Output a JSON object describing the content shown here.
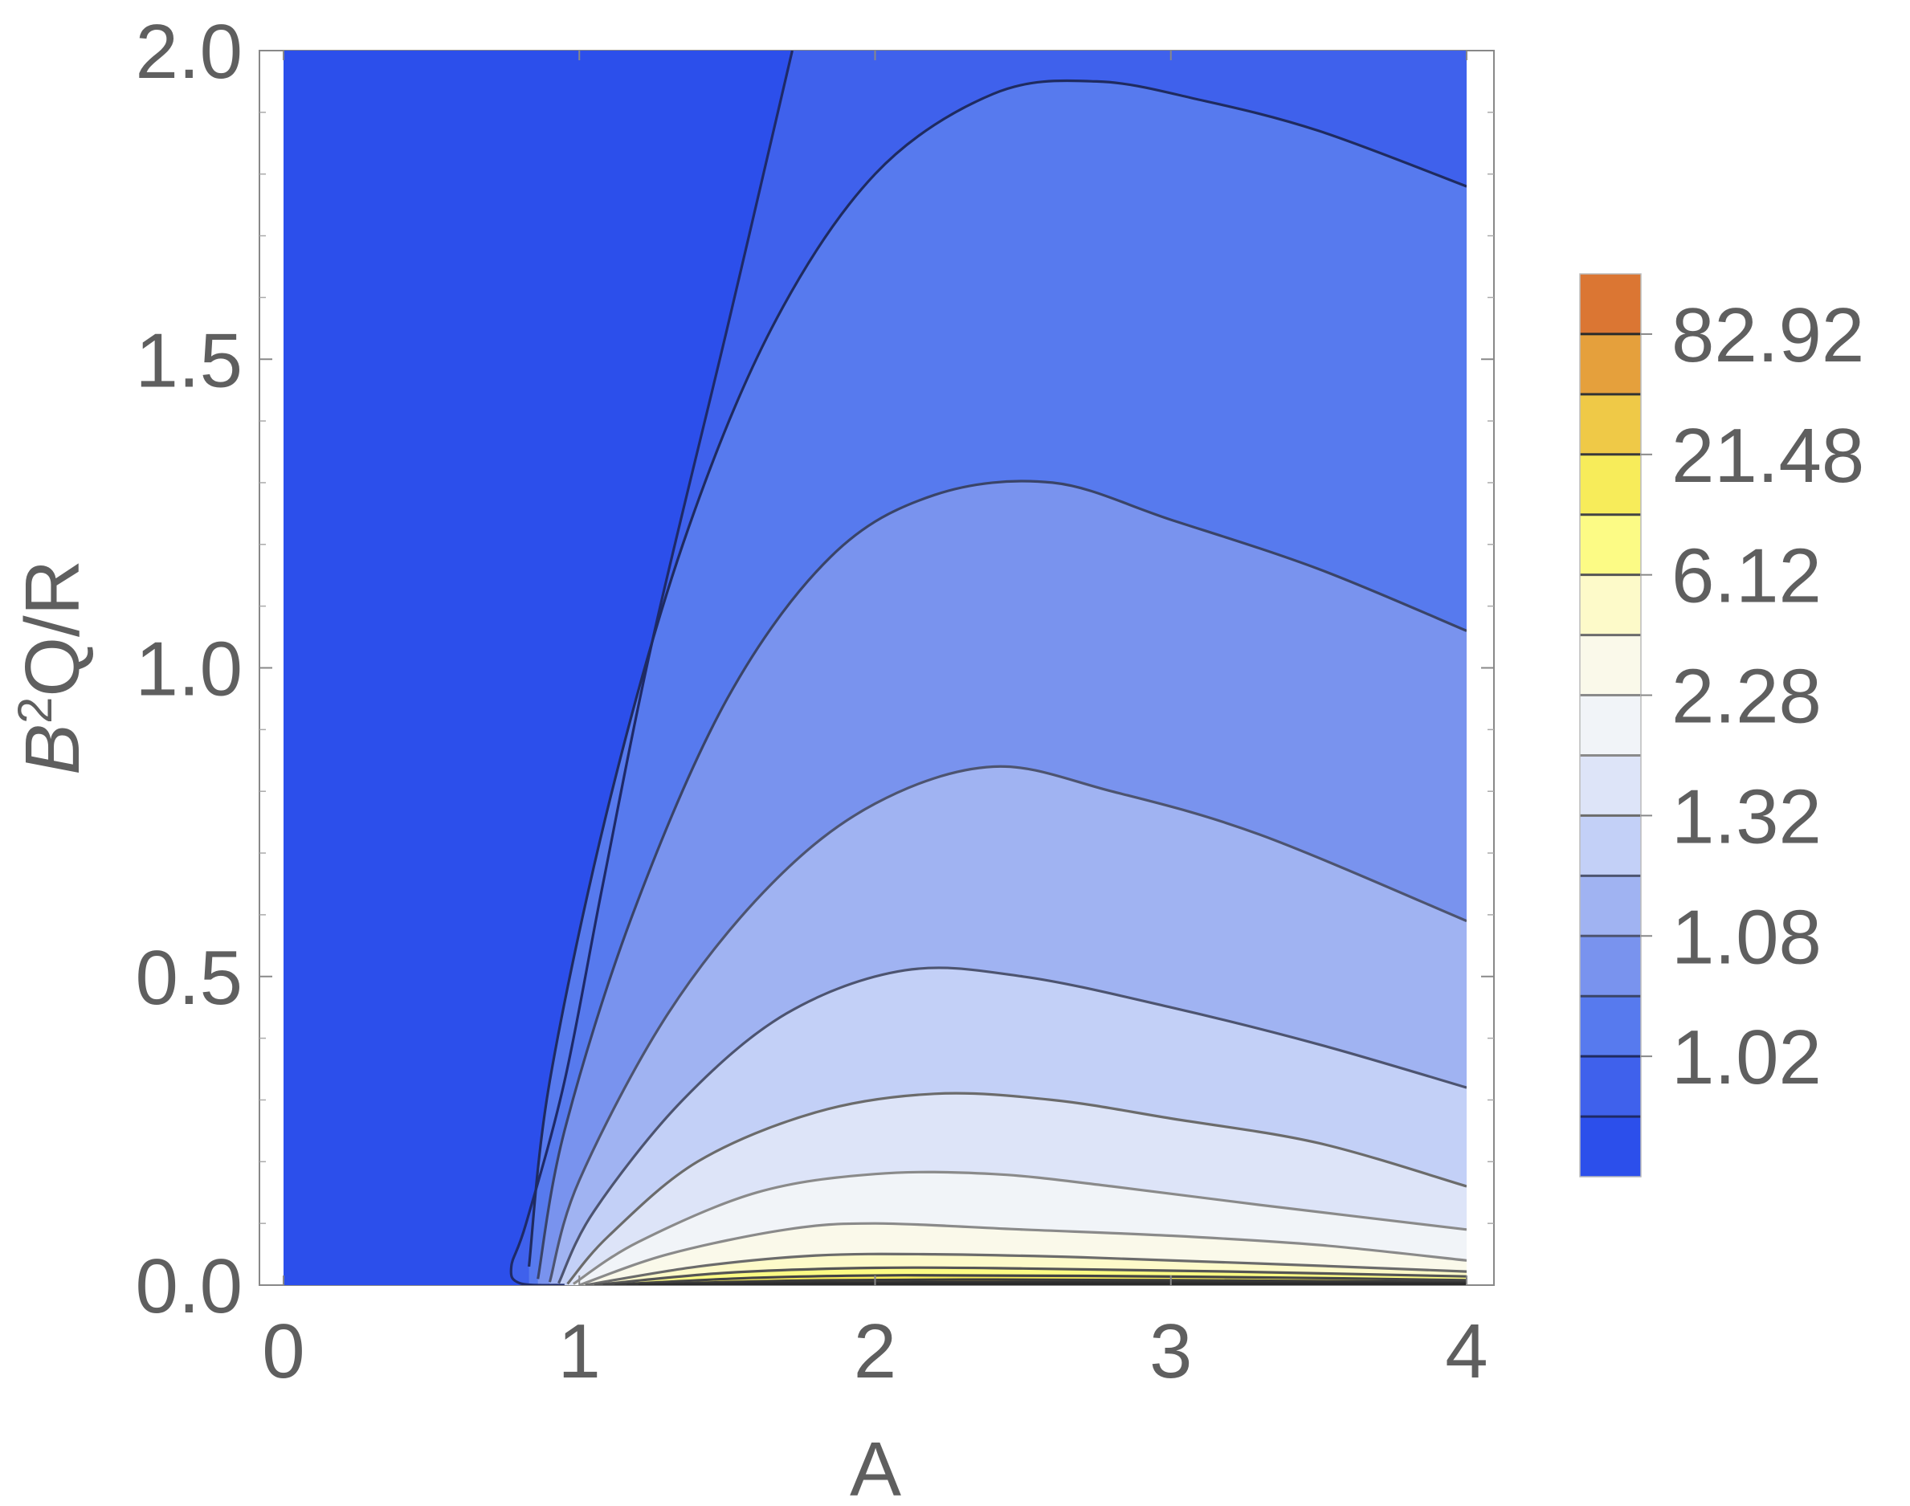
{
  "chart_data": {
    "type": "contour",
    "xlabel": "A",
    "ylabel": {
      "base": "B",
      "sup": "2",
      "rest": "Q/R"
    },
    "xlim": [
      0,
      4
    ],
    "ylim": [
      0,
      2
    ],
    "x_ticks": [
      "0",
      "1",
      "2",
      "3",
      "4"
    ],
    "y_ticks": [
      "0.0",
      "0.5",
      "1.0",
      "1.5",
      "2.0"
    ],
    "grid": false,
    "legend": {
      "placement": "right",
      "labels": [
        "82.92",
        "21.48",
        "6.12",
        "2.28",
        "1.32",
        "1.08",
        "1.02"
      ]
    },
    "colors": {
      "band_colors_top_to_bottom": [
        "#DB7633",
        "#E5A03C",
        "#EFC947",
        "#F7EC5A",
        "#FCFB85",
        "#FDFAC9",
        "#FAF9EA",
        "#F1F4F8",
        "#DDE4F8",
        "#C3D0F7",
        "#A0B3F2",
        "#7993EE",
        "#577AEE",
        "#3F61EC",
        "#2C4FEB"
      ],
      "line_colors_top_to_bottom": [
        "#2a2a2a",
        "#333333",
        "#3a3a3a",
        "#444444",
        "#555555",
        "#6b6b6b",
        "#8a8a8a",
        "#8a8a8a",
        "#6b6b6b",
        "#4d5470",
        "#4d5470",
        "#3a4468",
        "#1f2b60",
        "#1e2a68"
      ],
      "axis": "#5f5f5f",
      "frame": "#888888"
    },
    "contours": [
      {
        "points": [
          [
            1.72,
            2.0
          ],
          [
            1.5,
            1.55
          ],
          [
            1.25,
            1.05
          ],
          [
            1.08,
            0.65
          ],
          [
            0.95,
            0.33
          ],
          [
            0.82,
            0.1
          ],
          [
            0.77,
            0.03
          ],
          [
            0.8,
            0.003
          ],
          [
            0.95,
            0.0
          ]
        ]
      },
      {
        "points": [
          [
            0.83,
            0.03
          ],
          [
            0.9,
            0.33
          ],
          [
            1.1,
            0.78
          ],
          [
            1.35,
            1.2
          ],
          [
            1.65,
            1.55
          ],
          [
            2.0,
            1.8
          ],
          [
            2.4,
            1.93
          ],
          [
            2.75,
            1.95
          ],
          [
            3.1,
            1.92
          ],
          [
            3.5,
            1.87
          ],
          [
            4.0,
            1.78
          ]
        ]
      },
      {
        "points": [
          [
            0.86,
            0.01
          ],
          [
            0.95,
            0.25
          ],
          [
            1.18,
            0.6
          ],
          [
            1.5,
            0.95
          ],
          [
            1.85,
            1.18
          ],
          [
            2.2,
            1.28
          ],
          [
            2.6,
            1.3
          ],
          [
            3.0,
            1.24
          ],
          [
            3.5,
            1.16
          ],
          [
            4.0,
            1.06
          ]
        ]
      },
      {
        "points": [
          [
            0.9,
            0.005
          ],
          [
            1.0,
            0.17
          ],
          [
            1.3,
            0.44
          ],
          [
            1.65,
            0.65
          ],
          [
            2.0,
            0.78
          ],
          [
            2.4,
            0.84
          ],
          [
            2.8,
            0.8
          ],
          [
            3.3,
            0.73
          ],
          [
            4.0,
            0.59
          ]
        ]
      },
      {
        "points": [
          [
            0.93,
            0.003
          ],
          [
            1.05,
            0.12
          ],
          [
            1.35,
            0.3
          ],
          [
            1.7,
            0.44
          ],
          [
            2.1,
            0.51
          ],
          [
            2.5,
            0.5
          ],
          [
            3.0,
            0.45
          ],
          [
            3.5,
            0.39
          ],
          [
            4.0,
            0.32
          ]
        ]
      },
      {
        "points": [
          [
            0.96,
            0.002
          ],
          [
            1.1,
            0.08
          ],
          [
            1.4,
            0.2
          ],
          [
            1.8,
            0.28
          ],
          [
            2.2,
            0.31
          ],
          [
            2.6,
            0.3
          ],
          [
            3.0,
            0.27
          ],
          [
            3.5,
            0.23
          ],
          [
            4.0,
            0.16
          ]
        ]
      },
      {
        "points": [
          [
            0.98,
            0.002
          ],
          [
            1.2,
            0.07
          ],
          [
            1.6,
            0.15
          ],
          [
            2.0,
            0.18
          ],
          [
            2.4,
            0.18
          ],
          [
            2.8,
            0.16
          ],
          [
            3.3,
            0.13
          ],
          [
            4.0,
            0.09
          ]
        ]
      },
      {
        "points": [
          [
            1.0,
            0.0
          ],
          [
            1.3,
            0.05
          ],
          [
            1.7,
            0.09
          ],
          [
            2.0,
            0.1
          ],
          [
            2.5,
            0.09
          ],
          [
            3.0,
            0.08
          ],
          [
            3.5,
            0.065
          ],
          [
            4.0,
            0.04
          ]
        ]
      },
      {
        "points": [
          [
            1.02,
            0.0
          ],
          [
            1.4,
            0.03
          ],
          [
            1.8,
            0.048
          ],
          [
            2.2,
            0.05
          ],
          [
            2.7,
            0.045
          ],
          [
            3.3,
            0.035
          ],
          [
            4.0,
            0.022
          ]
        ]
      },
      {
        "points": [
          [
            1.05,
            0.0
          ],
          [
            1.5,
            0.02
          ],
          [
            2.0,
            0.028
          ],
          [
            2.5,
            0.027
          ],
          [
            3.2,
            0.022
          ],
          [
            4.0,
            0.014
          ]
        ]
      },
      {
        "points": [
          [
            1.08,
            0.0
          ],
          [
            1.6,
            0.012
          ],
          [
            2.1,
            0.016
          ],
          [
            2.7,
            0.015
          ],
          [
            3.4,
            0.012
          ],
          [
            4.0,
            0.008
          ]
        ]
      },
      {
        "points": [
          [
            1.12,
            0.0
          ],
          [
            1.7,
            0.007
          ],
          [
            2.3,
            0.009
          ],
          [
            3.0,
            0.008
          ],
          [
            4.0,
            0.005
          ]
        ]
      },
      {
        "points": [
          [
            1.16,
            0.0
          ],
          [
            1.8,
            0.004
          ],
          [
            2.5,
            0.005
          ],
          [
            3.3,
            0.004
          ],
          [
            4.0,
            0.003
          ]
        ]
      },
      {
        "points": [
          [
            1.2,
            0.0
          ],
          [
            2.0,
            0.002
          ],
          [
            3.0,
            0.002
          ],
          [
            4.0,
            0.0015
          ]
        ]
      }
    ]
  }
}
